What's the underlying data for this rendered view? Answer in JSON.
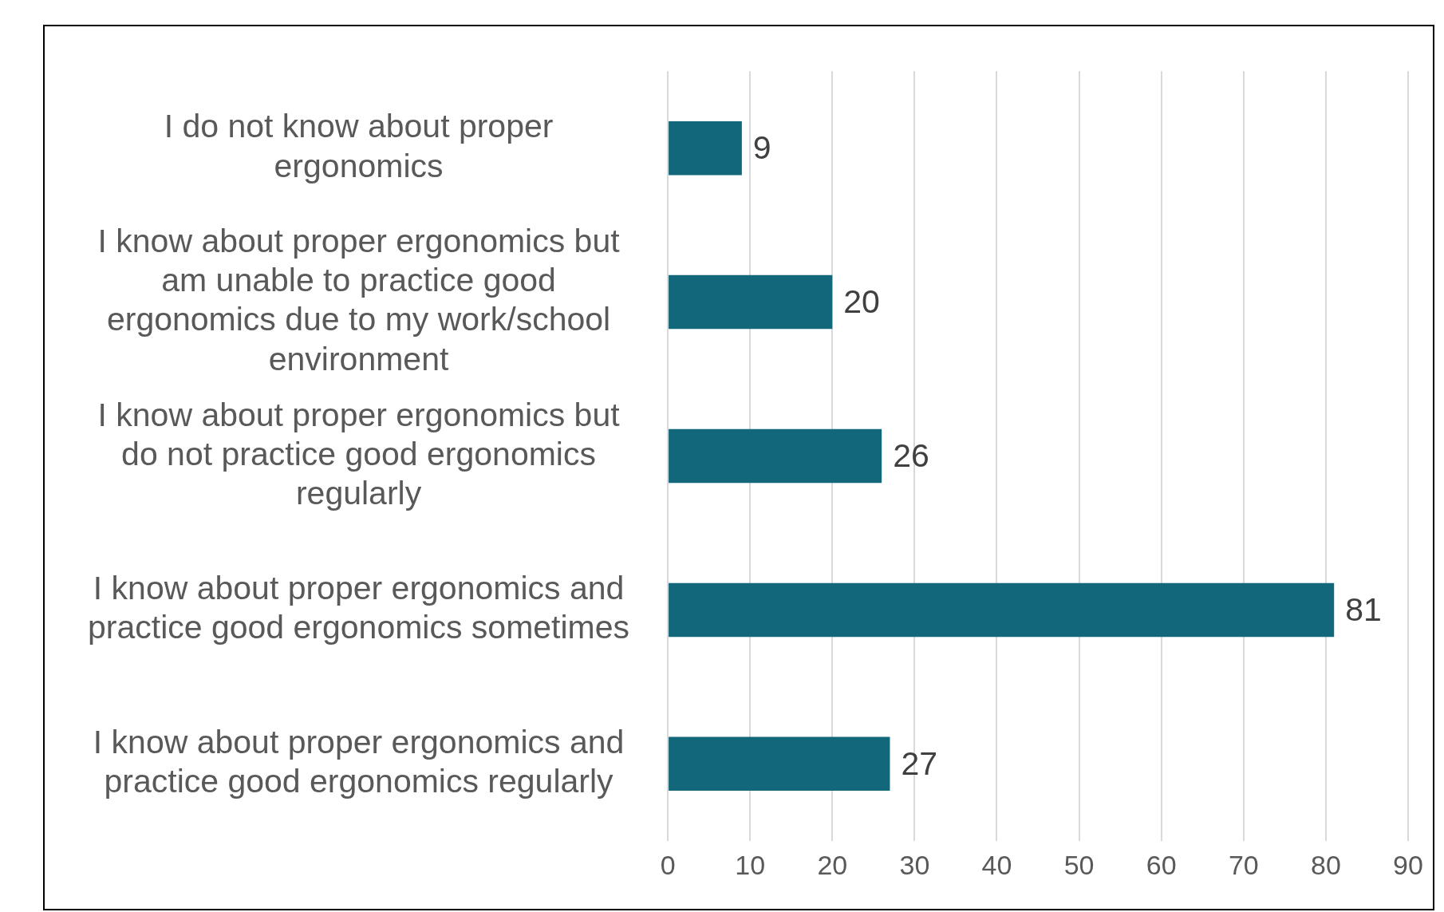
{
  "chart_data": {
    "type": "bar",
    "orientation": "horizontal",
    "categories": [
      "I do not know about proper ergonomics",
      "I know about proper ergonomics but am unable to practice good ergonomics due to my work/school environment",
      "I know about proper ergonomics but do not practice good ergonomics regularly",
      "I know about proper ergonomics and practice good ergonomics sometimes",
      "I know about proper ergonomics and practice good ergonomics regularly"
    ],
    "values": [
      9,
      20,
      26,
      81,
      27
    ],
    "color": "#12677a",
    "xlim": [
      0,
      90
    ],
    "xticks": [
      0,
      10,
      20,
      30,
      40,
      50,
      60,
      70,
      80,
      90
    ],
    "grid": "x",
    "data_labels": true,
    "legend": false
  }
}
